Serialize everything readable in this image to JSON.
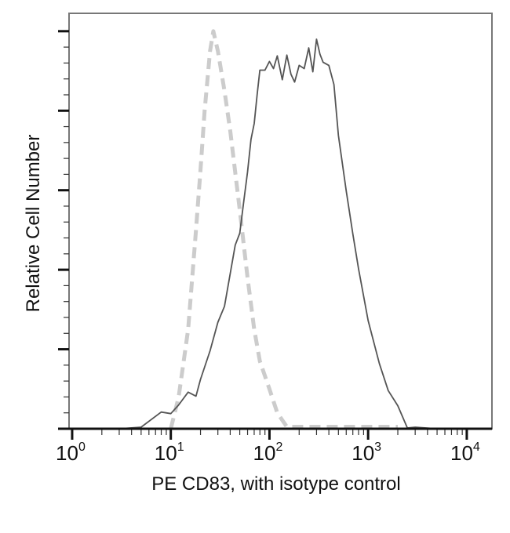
{
  "chart_data": {
    "type": "line",
    "xlabel": "PE CD83, with isotype control",
    "ylabel": "Relative Cell Number",
    "xscale": "log",
    "xlim": [
      0.93,
      18000
    ],
    "ylim": [
      0,
      104.5
    ],
    "x_ticks": [
      {
        "base": "10",
        "exp": "0",
        "value": 1
      },
      {
        "base": "10",
        "exp": "1",
        "value": 10
      },
      {
        "base": "10",
        "exp": "2",
        "value": 100
      },
      {
        "base": "10",
        "exp": "3",
        "value": 1000
      },
      {
        "base": "10",
        "exp": "4",
        "value": 10000
      }
    ],
    "y_major_ticks": [
      0,
      20,
      40,
      60,
      80,
      100
    ],
    "y_tick_labels_shown": false,
    "grid": false,
    "legend": "none",
    "series": [
      {
        "style": "solid",
        "color": "#555555",
        "x": [
          1,
          3,
          5,
          8,
          10,
          12,
          15,
          18,
          20,
          25,
          30,
          35,
          40,
          45,
          50,
          55,
          60,
          65,
          70,
          75,
          80,
          90,
          100,
          110,
          120,
          135,
          150,
          165,
          180,
          200,
          225,
          250,
          275,
          300,
          325,
          350,
          400,
          450,
          500,
          600,
          700,
          800,
          1000,
          1300,
          1600,
          2000,
          2500,
          3000,
          5000,
          10000,
          18000
        ],
        "y": [
          0,
          0,
          0.4,
          2.4,
          5,
          6,
          8,
          10,
          13,
          19,
          25,
          32,
          39,
          45,
          51,
          58,
          64,
          71,
          78,
          84,
          89,
          92,
          93,
          90,
          92,
          89,
          94,
          88,
          89,
          92,
          90,
          94,
          91,
          98,
          93,
          94,
          92,
          86,
          72,
          61,
          49,
          39,
          29,
          17,
          9,
          4,
          1.4,
          0.4,
          0,
          0,
          0
        ]
      },
      {
        "style": "dashed",
        "color": "#cccccc",
        "x": [
          10,
          12,
          15,
          18,
          20,
          22,
          25,
          27,
          30,
          35,
          40,
          50,
          60,
          70,
          80,
          100,
          120,
          150,
          200,
          500,
          1000,
          2000
        ],
        "y": [
          0,
          8,
          25,
          50,
          65,
          80,
          95,
          100,
          95,
          85,
          75,
          55,
          38,
          25,
          17,
          10,
          4,
          0.5,
          0.5,
          0.5,
          0.5,
          0.5
        ]
      }
    ]
  }
}
